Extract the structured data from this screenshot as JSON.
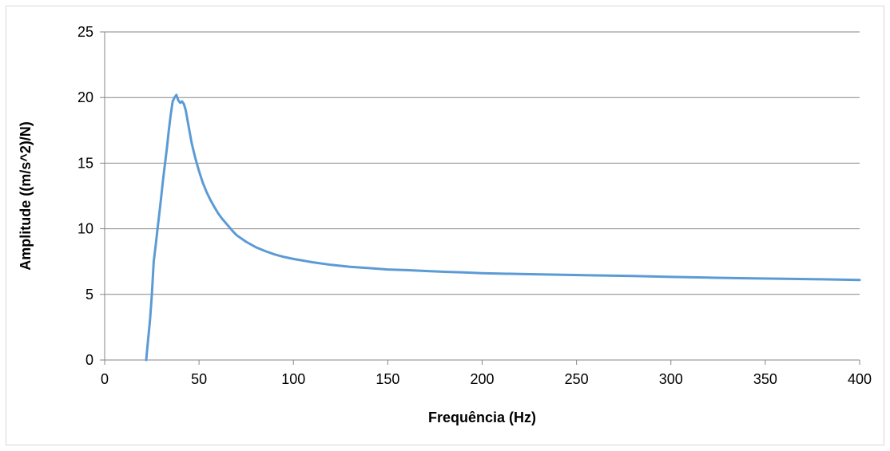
{
  "chart_data": {
    "type": "line",
    "title": "",
    "xlabel": "Frequência (Hz)",
    "ylabel": "Amplitude ((m/s^2)/N)",
    "xlim": [
      0,
      400
    ],
    "ylim": [
      0,
      25
    ],
    "x_ticks": [
      0,
      50,
      100,
      150,
      200,
      250,
      300,
      350,
      400
    ],
    "y_ticks": [
      0,
      5,
      10,
      15,
      20,
      25
    ],
    "grid": "horizontal",
    "legend": "none",
    "series_color": "#5b9bd5",
    "series": [
      {
        "x": [
          22,
          23,
          24,
          25,
          26,
          27,
          28,
          29,
          30,
          31,
          32,
          33,
          34,
          35,
          36,
          37,
          38,
          39,
          40,
          41,
          42,
          43,
          44,
          45,
          46,
          47,
          48,
          50,
          52,
          54,
          56,
          58,
          60,
          62,
          65,
          68,
          70,
          75,
          80,
          85,
          90,
          95,
          100,
          110,
          120,
          130,
          140,
          150,
          160,
          170,
          180,
          190,
          200,
          220,
          240,
          260,
          280,
          300,
          320,
          340,
          360,
          380,
          400
        ],
        "y": [
          0,
          1.5,
          3,
          5,
          7.5,
          8.7,
          10,
          11.2,
          12.5,
          13.8,
          15,
          16.2,
          17.5,
          18.7,
          19.7,
          20.0,
          20.2,
          19.8,
          19.6,
          19.7,
          19.5,
          19.0,
          18.2,
          17.4,
          16.6,
          16.0,
          15.4,
          14.4,
          13.5,
          12.8,
          12.2,
          11.7,
          11.2,
          10.8,
          10.3,
          9.8,
          9.5,
          9.0,
          8.6,
          8.3,
          8.05,
          7.85,
          7.7,
          7.45,
          7.25,
          7.1,
          7.0,
          6.9,
          6.85,
          6.78,
          6.72,
          6.68,
          6.62,
          6.55,
          6.5,
          6.45,
          6.4,
          6.33,
          6.28,
          6.23,
          6.19,
          6.15,
          6.1
        ]
      }
    ]
  }
}
